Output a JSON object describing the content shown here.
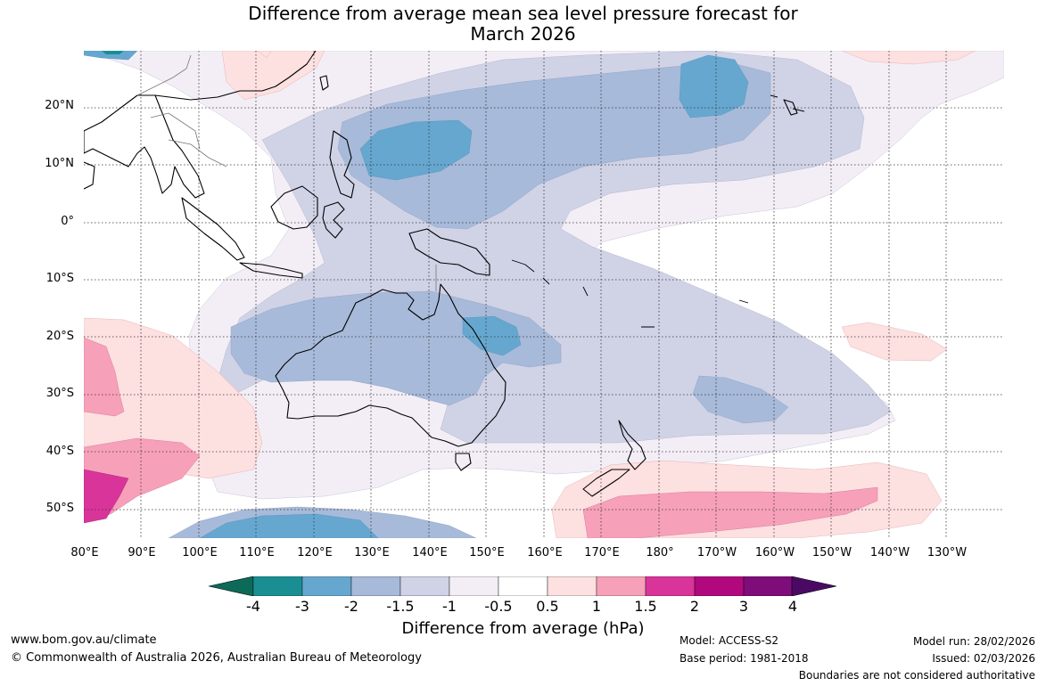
{
  "title": {
    "line1": "Difference from average mean sea level pressure forecast for",
    "line2": "March 2026"
  },
  "map": {
    "latitude_labels": [
      "20°N",
      "10°N",
      "0°",
      "10°S",
      "20°S",
      "30°S",
      "40°S",
      "50°S"
    ],
    "longitude_labels": [
      "80°E",
      "90°E",
      "100°E",
      "110°E",
      "120°E",
      "130°E",
      "140°E",
      "150°E",
      "160°E",
      "170°E",
      "180°",
      "170°W",
      "160°W",
      "150°W",
      "140°W",
      "130°W"
    ]
  },
  "colorbar": {
    "ticks": [
      "-4",
      "-3",
      "-2",
      "-1.5",
      "-1",
      "-0.5",
      "0.5",
      "1",
      "1.5",
      "2",
      "3",
      "4"
    ],
    "colors": [
      "#1a8f93",
      "#66a7d0",
      "#a7bad9",
      "#d0d2e6",
      "#f3eef6",
      "#ffffff",
      "#fde0e0",
      "#f7a0b9",
      "#d9349a",
      "#b2087e",
      "#7e0d79"
    ],
    "lower_extend_color": "#0c6b58",
    "upper_extend_color": "#4a0a64",
    "label": "Difference from average (hPa)"
  },
  "footer": {
    "website": "www.bom.gov.au/climate",
    "copyright": "© Commonwealth of Australia 2026, Australian Bureau of Meteorology",
    "model": "Model: ACCESS-S2",
    "base_period": "Base period: 1981-2018",
    "model_run": "Model run: 28/02/2026",
    "issued": "Issued: 02/03/2026",
    "disclaimer": "Boundaries are not considered authoritative"
  }
}
